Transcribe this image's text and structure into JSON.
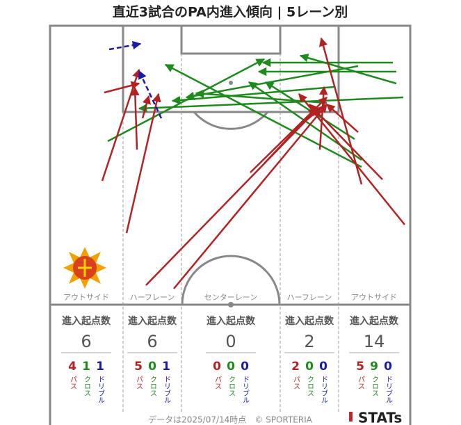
{
  "title": "直近3試合のPA内進入傾向 | 5レーン別",
  "lanes": [
    {
      "name": "アウトサイド",
      "header": "進入起点数",
      "total": 6,
      "breakdown": [
        {
          "value": 4,
          "label": "パス"
        },
        {
          "value": 1,
          "label": "クロス"
        },
        {
          "value": 1,
          "label": "ドリブル"
        }
      ]
    },
    {
      "name": "ハーフレーン",
      "header": "進入起点数",
      "total": 6,
      "breakdown": [
        {
          "value": 5,
          "label": "パス"
        },
        {
          "value": 0,
          "label": "クロス"
        },
        {
          "value": 1,
          "label": "ドリブル"
        }
      ]
    },
    {
      "name": "センターレーン",
      "header": "進入起点数",
      "total": 0,
      "breakdown": [
        {
          "value": 0,
          "label": "パス"
        },
        {
          "value": 0,
          "label": "クロス"
        },
        {
          "value": 0,
          "label": "ドリブル"
        }
      ]
    },
    {
      "name": "ハーフレーン",
      "header": "進入起点数",
      "total": 2,
      "breakdown": [
        {
          "value": 2,
          "label": "パス"
        },
        {
          "value": 0,
          "label": "クロス"
        },
        {
          "value": 0,
          "label": "ドリブル"
        }
      ]
    },
    {
      "name": "アウトサイド",
      "header": "進入起点数",
      "total": 14,
      "breakdown": [
        {
          "value": 5,
          "label": "パス"
        },
        {
          "value": 9,
          "label": "クロス"
        },
        {
          "value": 0,
          "label": "ドリブル"
        }
      ]
    }
  ],
  "footer": "データは2025/07/14時点　© SPORTERIA",
  "logo": "STATs"
}
